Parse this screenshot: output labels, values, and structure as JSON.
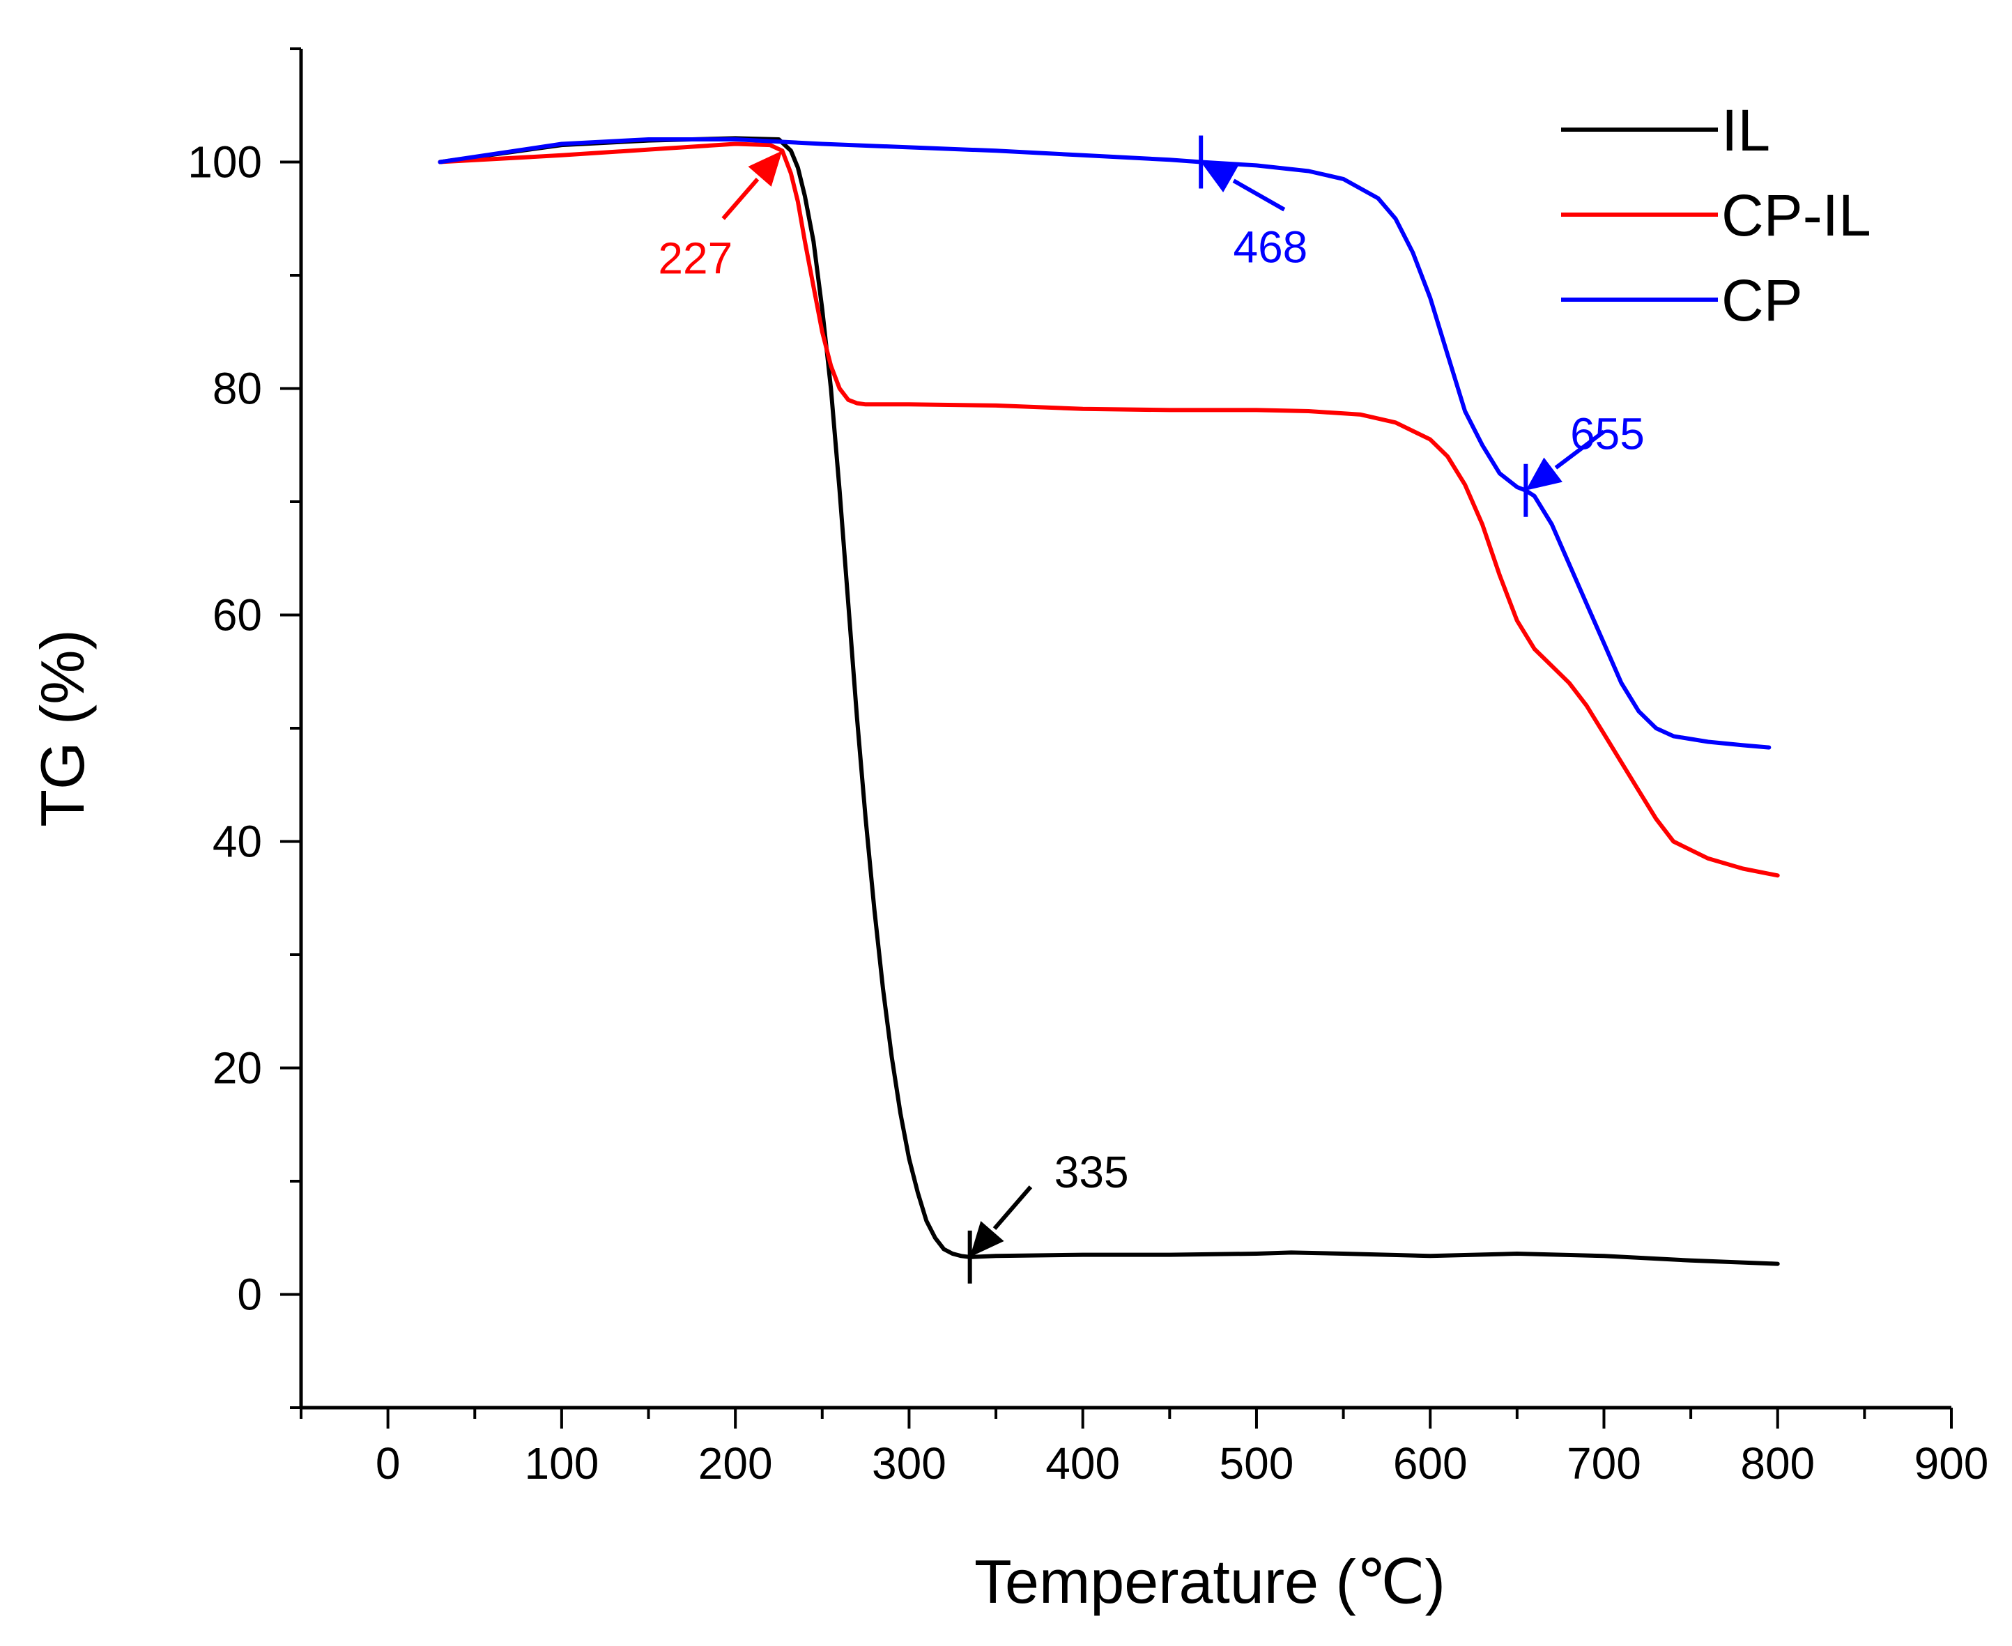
{
  "chart_data": {
    "type": "line",
    "title": "",
    "xlabel": "Temperature (℃)",
    "ylabel": "TG (%)",
    "xlim": [
      -50,
      900
    ],
    "ylim": [
      -10,
      110
    ],
    "xticks": [
      0,
      100,
      200,
      300,
      400,
      500,
      600,
      700,
      800,
      900
    ],
    "yticks": [
      0,
      20,
      40,
      60,
      80,
      100
    ],
    "legend_position": "top-right",
    "series": [
      {
        "name": "IL",
        "color": "#000000",
        "x": [
          30,
          100,
          150,
          200,
          225,
          232,
          236,
          240,
          245,
          250,
          255,
          260,
          265,
          270,
          275,
          280,
          285,
          290,
          295,
          300,
          305,
          310,
          315,
          320,
          325,
          330,
          335,
          350,
          400,
          450,
          500,
          520,
          550,
          600,
          650,
          700,
          750,
          800
        ],
        "y": [
          100.0,
          101.5,
          101.9,
          102.1,
          102.0,
          101.0,
          99.5,
          97.0,
          93.0,
          87.0,
          80.0,
          71.0,
          61.0,
          51.0,
          42.0,
          34.0,
          27.0,
          21.0,
          16.0,
          12.0,
          9.0,
          6.5,
          5.0,
          4.0,
          3.6,
          3.4,
          3.3,
          3.4,
          3.5,
          3.5,
          3.6,
          3.7,
          3.6,
          3.4,
          3.6,
          3.4,
          3.0,
          2.7
        ]
      },
      {
        "name": "CP-IL",
        "color": "#ff0000",
        "x": [
          30,
          100,
          150,
          200,
          220,
          227,
          232,
          236,
          240,
          245,
          250,
          255,
          260,
          265,
          270,
          275,
          280,
          300,
          350,
          400,
          450,
          500,
          530,
          560,
          580,
          600,
          610,
          620,
          630,
          640,
          650,
          660,
          670,
          680,
          690,
          700,
          710,
          720,
          730,
          740,
          760,
          780,
          800
        ],
        "y": [
          100.0,
          100.6,
          101.1,
          101.6,
          101.5,
          101.0,
          99.0,
          96.5,
          93.0,
          89.0,
          85.0,
          82.0,
          80.0,
          79.0,
          78.7,
          78.6,
          78.6,
          78.6,
          78.5,
          78.2,
          78.1,
          78.1,
          78.0,
          77.7,
          77.0,
          75.5,
          74.0,
          71.5,
          68.0,
          63.5,
          59.5,
          57.0,
          55.5,
          54.0,
          52.0,
          49.5,
          47.0,
          44.5,
          42.0,
          40.0,
          38.5,
          37.6,
          37.0
        ]
      },
      {
        "name": "CP",
        "color": "#0000ff",
        "x": [
          30,
          100,
          150,
          200,
          250,
          300,
          350,
          400,
          450,
          468,
          500,
          530,
          550,
          570,
          580,
          590,
          600,
          610,
          620,
          630,
          640,
          650,
          655,
          660,
          670,
          680,
          690,
          700,
          710,
          720,
          730,
          740,
          760,
          780,
          795
        ],
        "y": [
          100.0,
          101.6,
          102.0,
          102.0,
          101.6,
          101.3,
          101.0,
          100.6,
          100.2,
          100.0,
          99.7,
          99.2,
          98.5,
          96.8,
          95.0,
          92.0,
          88.0,
          83.0,
          78.0,
          75.0,
          72.5,
          71.3,
          71.0,
          70.5,
          68.0,
          64.5,
          61.0,
          57.5,
          54.0,
          51.5,
          50.0,
          49.3,
          48.8,
          48.5,
          48.3
        ]
      }
    ],
    "annotations": [
      {
        "text": "227",
        "x": 227,
        "y": 101.0,
        "color": "#ff0000",
        "label_x": 177,
        "label_y": 91.5,
        "arrow_from_x": 193,
        "arrow_from_y": 95.0,
        "marker": false
      },
      {
        "text": "468",
        "x": 468,
        "y": 100.0,
        "color": "#0000ff",
        "label_x": 508,
        "label_y": 92.5,
        "arrow_from_x": 516,
        "arrow_from_y": 95.8,
        "marker": true
      },
      {
        "text": "655",
        "x": 655,
        "y": 71.0,
        "color": "#0000ff",
        "label_x": 702,
        "label_y": 76.0,
        "arrow_from_x": 700,
        "arrow_from_y": 76.2,
        "marker": true
      },
      {
        "text": "335",
        "x": 335,
        "y": 3.3,
        "color": "#000000",
        "label_x": 405,
        "label_y": 10.8,
        "arrow_from_x": 370,
        "arrow_from_y": 9.5,
        "marker": true
      }
    ]
  }
}
